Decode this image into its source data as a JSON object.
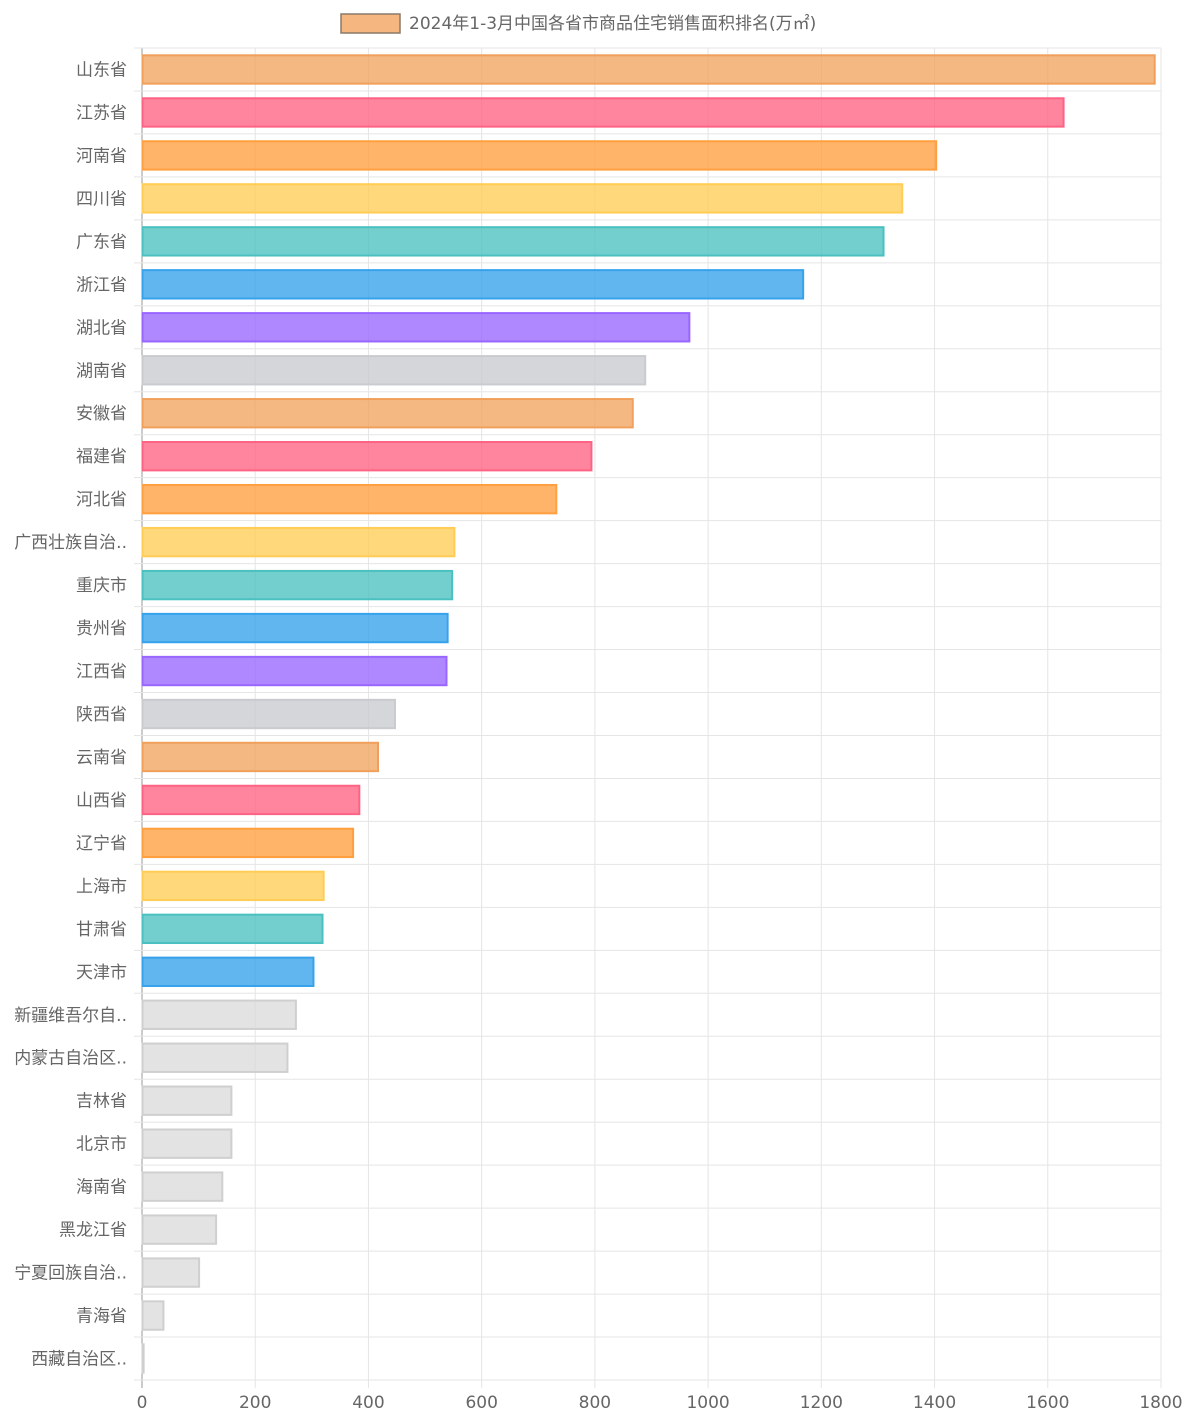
{
  "chart_data": {
    "type": "bar",
    "orientation": "horizontal",
    "legend": {
      "position": "top",
      "label": "2024年1-3月中国各省市商品住宅销售面积排名(万㎡)",
      "swatch_fill": "#f5b67f",
      "swatch_border": "#8a7a6a"
    },
    "grid": true,
    "xlim": [
      0,
      1800
    ],
    "x_ticks": [
      "0",
      "200",
      "400",
      "600",
      "800",
      "1000",
      "1200",
      "1400",
      "1600",
      "1800"
    ],
    "categories": [
      "山东省",
      "江苏省",
      "河南省",
      "四川省",
      "广东省",
      "浙江省",
      "湖北省",
      "湖南省",
      "安徽省",
      "福建省",
      "河北省",
      "广西壮族自治..",
      "重庆市",
      "贵州省",
      "江西省",
      "陕西省",
      "云南省",
      "山西省",
      "辽宁省",
      "上海市",
      "甘肃省",
      "天津市",
      "新疆维吾尔自..",
      "内蒙古自治区..",
      "吉林省",
      "北京市",
      "海南省",
      "黑龙江省",
      "宁夏回族自治..",
      "青海省",
      "西藏自治区.."
    ],
    "values": [
      1788,
      1627,
      1402,
      1342,
      1309,
      1167,
      966,
      888,
      866,
      793,
      731,
      551,
      547,
      539,
      537,
      446,
      416,
      383,
      372,
      320,
      318,
      302,
      271,
      256,
      157,
      157,
      141,
      130,
      100,
      37,
      2
    ],
    "colors": {
      "palette_fill": [
        "rgba(240,160,90,0.75)",
        "rgba(255,99,132,0.78)",
        "rgba(255,159,64,0.78)",
        "rgba(255,205,86,0.78)",
        "rgba(75,192,192,0.78)",
        "rgba(54,162,235,0.78)",
        "rgba(153,102,255,0.78)",
        "rgba(201,203,207,0.78)"
      ],
      "palette_border": [
        "#f0a05a",
        "#ff6384",
        "#ff9f40",
        "#ffcd56",
        "#4bc0c0",
        "#36a2eb",
        "#9966ff",
        "#c9cbcf"
      ],
      "tail_fill": "rgba(218,218,218,0.75)",
      "tail_border": "#cfcfcf",
      "tail_start_index": 22
    }
  }
}
